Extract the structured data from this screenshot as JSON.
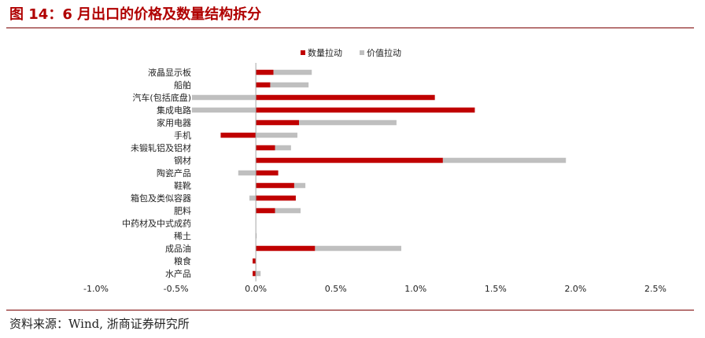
{
  "header": {
    "title": "图 14：6 月出口的价格及数量结构拆分"
  },
  "footer": {
    "source": "资料来源：Wind, 浙商证券研究所"
  },
  "colors": {
    "quantity": "#c00000",
    "price": "#bfbfbf",
    "title": "#b00000"
  },
  "chart_data": {
    "type": "bar",
    "orientation": "horizontal",
    "stacked": true,
    "categories": [
      "液晶显示板",
      "船舶",
      "汽车(包括底盘)",
      "集成电路",
      "家用电器",
      "手机",
      "未锻轧铝及铝材",
      "钢材",
      "陶瓷产品",
      "鞋靴",
      "箱包及类似容器",
      "肥料",
      "中药材及中式成药",
      "稀土",
      "成品油",
      "粮食",
      "水产品"
    ],
    "series": [
      {
        "name": "数量拉动",
        "values": [
          0.11,
          0.09,
          1.12,
          1.37,
          0.27,
          -0.22,
          0.12,
          1.17,
          0.14,
          0.24,
          0.25,
          0.12,
          0.0,
          0.0,
          0.37,
          -0.02,
          -0.02
        ]
      },
      {
        "name": "价值拉动",
        "values": [
          0.24,
          0.24,
          -0.4,
          -0.4,
          0.61,
          0.26,
          0.1,
          0.77,
          -0.11,
          0.07,
          -0.04,
          0.16,
          0.0,
          0.005,
          0.54,
          0.0,
          0.03
        ]
      }
    ],
    "xlim": [
      -1.0,
      2.5
    ],
    "xticks": [
      "-1.0%",
      "-0.5%",
      "0.0%",
      "0.5%",
      "1.0%",
      "1.5%",
      "2.0%",
      "2.5%"
    ],
    "legend_position": "top-right"
  }
}
